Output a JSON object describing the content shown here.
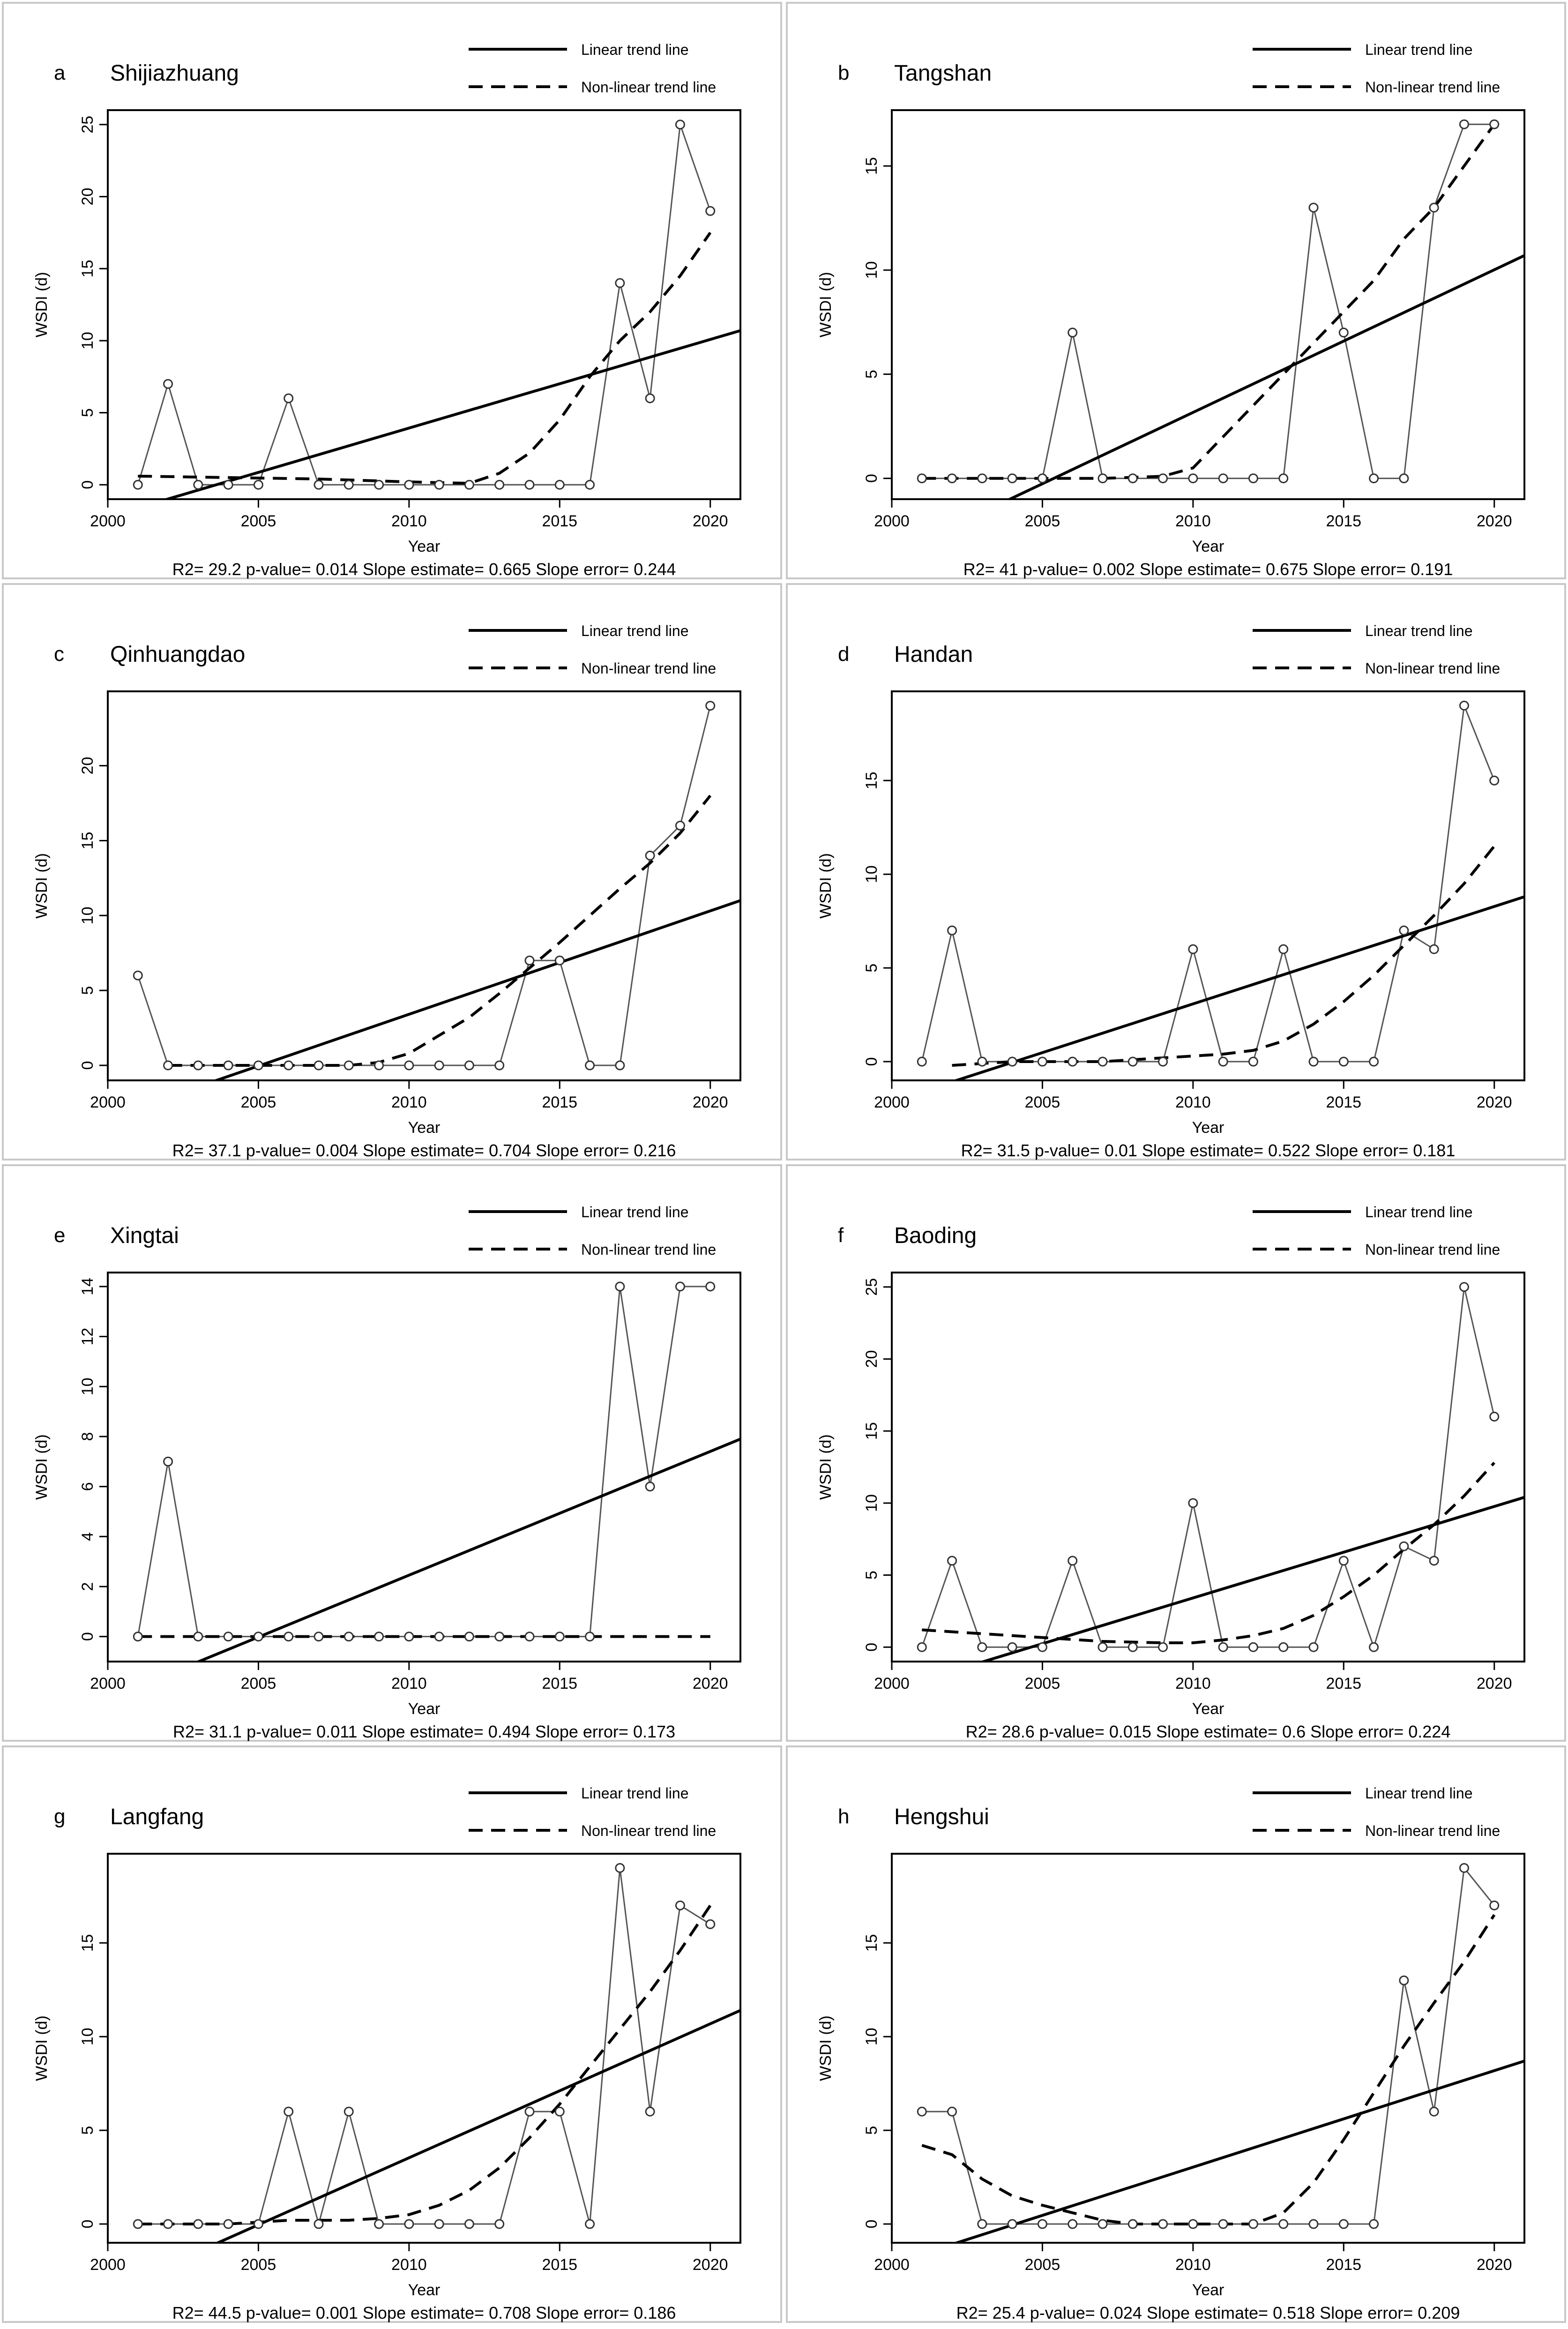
{
  "figure": {
    "xlabel": "Year",
    "ylabel": "WSDI  (d)",
    "legend": {
      "linear": "Linear trend line",
      "nonlinear": "Non-linear trend line",
      "placement": "top-right, above plot"
    }
  },
  "chart_data": [
    {
      "type": "line",
      "letter": "a",
      "city": "Shijiazhuang",
      "x": [
        2001,
        2002,
        2003,
        2004,
        2005,
        2006,
        2007,
        2008,
        2009,
        2010,
        2011,
        2012,
        2013,
        2014,
        2015,
        2016,
        2017,
        2018,
        2019,
        2020
      ],
      "values": [
        0,
        7,
        0,
        0,
        0,
        6,
        0,
        0,
        0,
        0,
        0,
        0,
        0,
        0,
        0,
        0,
        14,
        6,
        25,
        19
      ],
      "ylim": [
        0,
        25
      ],
      "yticks": [
        0,
        5,
        10,
        15,
        20,
        25
      ],
      "xlim": [
        2000,
        2021
      ],
      "xticks": [
        2000,
        2005,
        2010,
        2015,
        2020
      ],
      "linear_trend": [
        [
          2001,
          -1.6
        ],
        [
          2021,
          10.7
        ]
      ],
      "nonlinear_trend": [
        [
          2001,
          0.6
        ],
        [
          2004,
          0.5
        ],
        [
          2007,
          0.4
        ],
        [
          2010,
          0.2
        ],
        [
          2012,
          0.1
        ],
        [
          2013,
          0.8
        ],
        [
          2014,
          2.2
        ],
        [
          2015,
          4.5
        ],
        [
          2016,
          7.5
        ],
        [
          2017,
          10
        ],
        [
          2018,
          12
        ],
        [
          2019,
          14.5
        ],
        [
          2020,
          17.5
        ]
      ],
      "stats": "R2= 29.2  p-value= 0.014  Slope estimate= 0.665  Slope error= 0.244"
    },
    {
      "type": "line",
      "letter": "b",
      "city": "Tangshan",
      "x": [
        2001,
        2002,
        2003,
        2004,
        2005,
        2006,
        2007,
        2008,
        2009,
        2010,
        2011,
        2012,
        2013,
        2014,
        2015,
        2016,
        2017,
        2018,
        2019,
        2020
      ],
      "values": [
        0,
        0,
        0,
        0,
        0,
        7,
        0,
        0,
        0,
        0,
        0,
        0,
        0,
        13,
        7,
        0,
        0,
        13,
        17,
        17
      ],
      "ylim": [
        0,
        17
      ],
      "yticks": [
        0,
        5,
        10,
        15
      ],
      "xlim": [
        2000,
        2021
      ],
      "xticks": [
        2000,
        2005,
        2010,
        2015,
        2020
      ],
      "linear_trend": [
        [
          2001,
          -3.0
        ],
        [
          2021,
          10.7
        ]
      ],
      "nonlinear_trend": [
        [
          2001,
          0
        ],
        [
          2004,
          0
        ],
        [
          2007,
          0
        ],
        [
          2009,
          0.1
        ],
        [
          2010,
          0.5
        ],
        [
          2011,
          2
        ],
        [
          2012,
          3.5
        ],
        [
          2013,
          5
        ],
        [
          2014,
          6.5
        ],
        [
          2015,
          8
        ],
        [
          2016,
          9.5
        ],
        [
          2017,
          11.5
        ],
        [
          2018,
          13
        ],
        [
          2019,
          15
        ],
        [
          2020,
          17
        ]
      ],
      "stats": "R2= 41  p-value= 0.002  Slope estimate= 0.675  Slope error= 0.191"
    },
    {
      "type": "line",
      "letter": "c",
      "city": "Qinhuangdao",
      "x": [
        2001,
        2002,
        2003,
        2004,
        2005,
        2006,
        2007,
        2008,
        2009,
        2010,
        2011,
        2012,
        2013,
        2014,
        2015,
        2016,
        2017,
        2018,
        2019,
        2020
      ],
      "values": [
        6,
        0,
        0,
        0,
        0,
        0,
        0,
        0,
        0,
        0,
        0,
        0,
        0,
        7,
        7,
        0,
        0,
        14,
        16,
        24
      ],
      "ylim": [
        0,
        24
      ],
      "yticks": [
        0,
        5,
        10,
        15,
        20
      ],
      "xlim": [
        2000,
        2021
      ],
      "xticks": [
        2000,
        2005,
        2010,
        2015,
        2020
      ],
      "linear_trend": [
        [
          2001,
          -2.8
        ],
        [
          2021,
          11.0
        ]
      ],
      "nonlinear_trend": [
        [
          2002,
          0
        ],
        [
          2005,
          0
        ],
        [
          2008,
          0
        ],
        [
          2009,
          0.2
        ],
        [
          2010,
          0.8
        ],
        [
          2011,
          2
        ],
        [
          2012,
          3.2
        ],
        [
          2013,
          4.8
        ],
        [
          2014,
          6.5
        ],
        [
          2015,
          8.2
        ],
        [
          2016,
          10
        ],
        [
          2017,
          11.8
        ],
        [
          2018,
          13.5
        ],
        [
          2019,
          15.5
        ],
        [
          2020,
          18
        ]
      ],
      "stats": "R2= 37.1  p-value= 0.004  Slope estimate= 0.704  Slope error= 0.216"
    },
    {
      "type": "line",
      "letter": "d",
      "city": "Handan",
      "x": [
        2001,
        2002,
        2003,
        2004,
        2005,
        2006,
        2007,
        2008,
        2009,
        2010,
        2011,
        2012,
        2013,
        2014,
        2015,
        2016,
        2017,
        2018,
        2019,
        2020
      ],
      "values": [
        0,
        7,
        0,
        0,
        0,
        0,
        0,
        0,
        0,
        6,
        0,
        0,
        6,
        0,
        0,
        0,
        7,
        6,
        19,
        15
      ],
      "ylim": [
        0,
        19
      ],
      "yticks": [
        0,
        5,
        10,
        15
      ],
      "xlim": [
        2000,
        2021
      ],
      "xticks": [
        2000,
        2005,
        2010,
        2015,
        2020
      ],
      "linear_trend": [
        [
          2001,
          -1.6
        ],
        [
          2021,
          8.8
        ]
      ],
      "nonlinear_trend": [
        [
          2002,
          -0.2
        ],
        [
          2004,
          0
        ],
        [
          2007,
          0
        ],
        [
          2009,
          0.2
        ],
        [
          2011,
          0.4
        ],
        [
          2012,
          0.6
        ],
        [
          2013,
          1.1
        ],
        [
          2014,
          2
        ],
        [
          2015,
          3.2
        ],
        [
          2016,
          4.6
        ],
        [
          2017,
          6.2
        ],
        [
          2018,
          7.8
        ],
        [
          2019,
          9.5
        ],
        [
          2020,
          11.5
        ]
      ],
      "stats": "R2= 31.5  p-value= 0.01  Slope estimate= 0.522  Slope error= 0.181"
    },
    {
      "type": "line",
      "letter": "e",
      "city": "Xingtai",
      "x": [
        2001,
        2002,
        2003,
        2004,
        2005,
        2006,
        2007,
        2008,
        2009,
        2010,
        2011,
        2012,
        2013,
        2014,
        2015,
        2016,
        2017,
        2018,
        2019,
        2020
      ],
      "values": [
        0,
        7,
        0,
        0,
        0,
        0,
        0,
        0,
        0,
        0,
        0,
        0,
        0,
        0,
        0,
        0,
        14,
        6,
        14,
        14
      ],
      "ylim": [
        0,
        14
      ],
      "yticks": [
        0,
        2,
        4,
        6,
        8,
        10,
        12,
        14
      ],
      "xlim": [
        2000,
        2021
      ],
      "xticks": [
        2000,
        2005,
        2010,
        2015,
        2020
      ],
      "linear_trend": [
        [
          2001,
          -2.0
        ],
        [
          2021,
          7.9
        ]
      ],
      "nonlinear_trend": [
        [
          2001,
          0
        ],
        [
          2020,
          0
        ]
      ],
      "stats": "R2= 31.1  p-value= 0.011  Slope estimate= 0.494  Slope error= 0.173"
    },
    {
      "type": "line",
      "letter": "f",
      "city": "Baoding",
      "x": [
        2001,
        2002,
        2003,
        2004,
        2005,
        2006,
        2007,
        2008,
        2009,
        2010,
        2011,
        2012,
        2013,
        2014,
        2015,
        2016,
        2017,
        2018,
        2019,
        2020
      ],
      "values": [
        0,
        6,
        0,
        0,
        0,
        6,
        0,
        0,
        0,
        10,
        0,
        0,
        0,
        0,
        6,
        0,
        7,
        6,
        25,
        16
      ],
      "ylim": [
        0,
        25
      ],
      "yticks": [
        0,
        5,
        10,
        15,
        20,
        25
      ],
      "xlim": [
        2000,
        2021
      ],
      "xticks": [
        2000,
        2005,
        2010,
        2015,
        2020
      ],
      "linear_trend": [
        [
          2001,
          -2.3
        ],
        [
          2021,
          10.4
        ]
      ],
      "nonlinear_trend": [
        [
          2001,
          1.2
        ],
        [
          2004,
          0.8
        ],
        [
          2007,
          0.4
        ],
        [
          2009,
          0.3
        ],
        [
          2010,
          0.3
        ],
        [
          2011,
          0.5
        ],
        [
          2012,
          0.8
        ],
        [
          2013,
          1.3
        ],
        [
          2014,
          2.2
        ],
        [
          2015,
          3.5
        ],
        [
          2016,
          5
        ],
        [
          2017,
          6.8
        ],
        [
          2018,
          8.5
        ],
        [
          2019,
          10.5
        ],
        [
          2020,
          12.8
        ]
      ],
      "stats": "R2= 28.6  p-value= 0.015  Slope estimate= 0.6  Slope error= 0.224"
    },
    {
      "type": "line",
      "letter": "g",
      "city": "Langfang",
      "x": [
        2001,
        2002,
        2003,
        2004,
        2005,
        2006,
        2007,
        2008,
        2009,
        2010,
        2011,
        2012,
        2013,
        2014,
        2015,
        2016,
        2017,
        2018,
        2019,
        2020
      ],
      "values": [
        0,
        0,
        0,
        0,
        0,
        6,
        0,
        6,
        0,
        0,
        0,
        0,
        0,
        6,
        6,
        0,
        19,
        6,
        17,
        16
      ],
      "ylim": [
        0,
        19
      ],
      "yticks": [
        0,
        5,
        10,
        15
      ],
      "xlim": [
        2000,
        2021
      ],
      "xticks": [
        2000,
        2005,
        2010,
        2015,
        2020
      ],
      "linear_trend": [
        [
          2001,
          -2.9
        ],
        [
          2021,
          11.4
        ]
      ],
      "nonlinear_trend": [
        [
          2001,
          0
        ],
        [
          2004,
          0
        ],
        [
          2006,
          0.2
        ],
        [
          2008,
          0.2
        ],
        [
          2009,
          0.3
        ],
        [
          2010,
          0.5
        ],
        [
          2011,
          1
        ],
        [
          2012,
          1.8
        ],
        [
          2013,
          3
        ],
        [
          2014,
          4.6
        ],
        [
          2015,
          6.4
        ],
        [
          2016,
          8.4
        ],
        [
          2017,
          10.4
        ],
        [
          2018,
          12.4
        ],
        [
          2019,
          14.6
        ],
        [
          2020,
          17
        ]
      ],
      "stats": "R2= 44.5  p-value= 0.001  Slope estimate= 0.708  Slope error= 0.186"
    },
    {
      "type": "line",
      "letter": "h",
      "city": "Hengshui",
      "x": [
        2001,
        2002,
        2003,
        2004,
        2005,
        2006,
        2007,
        2008,
        2009,
        2010,
        2011,
        2012,
        2013,
        2014,
        2015,
        2016,
        2017,
        2018,
        2019,
        2020
      ],
      "values": [
        6,
        6,
        0,
        0,
        0,
        0,
        0,
        0,
        0,
        0,
        0,
        0,
        0,
        0,
        0,
        0,
        13,
        6,
        19,
        17
      ],
      "ylim": [
        0,
        19
      ],
      "yticks": [
        0,
        5,
        10,
        15
      ],
      "xlim": [
        2000,
        2021
      ],
      "xticks": [
        2000,
        2005,
        2010,
        2015,
        2020
      ],
      "linear_trend": [
        [
          2001,
          -1.6
        ],
        [
          2021,
          8.7
        ]
      ],
      "nonlinear_trend": [
        [
          2001,
          4.2
        ],
        [
          2002,
          3.7
        ],
        [
          2003,
          2.4
        ],
        [
          2004,
          1.5
        ],
        [
          2005,
          1
        ],
        [
          2006,
          0.6
        ],
        [
          2007,
          0.2
        ],
        [
          2008,
          0
        ],
        [
          2010,
          0
        ],
        [
          2012,
          0
        ],
        [
          2013,
          0.6
        ],
        [
          2014,
          2.2
        ],
        [
          2015,
          4.5
        ],
        [
          2016,
          7
        ],
        [
          2017,
          9.5
        ],
        [
          2018,
          11.8
        ],
        [
          2019,
          14
        ],
        [
          2020,
          16.5
        ]
      ],
      "stats": "R2= 25.4  p-value= 0.024  Slope estimate= 0.518  Slope error= 0.209"
    }
  ]
}
